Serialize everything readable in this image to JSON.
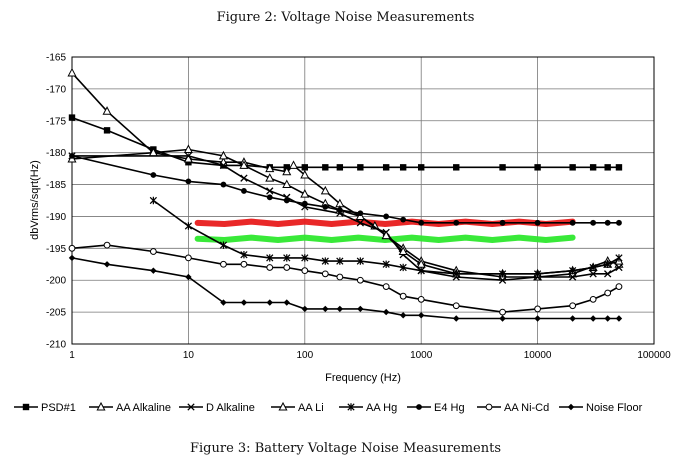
{
  "figure_title": "Figure 2: Voltage Noise Measurements",
  "figure_caption": "Figure 3: Battery Voltage Noise Measurements",
  "chart_data": {
    "type": "line",
    "xlabel": "Frequency (Hz)",
    "ylabel": "dbVrms/sqrt(Hz)",
    "xscale": "log",
    "xlim": [
      1,
      100000
    ],
    "ylim": [
      -210,
      -165
    ],
    "x_ticks": [
      "1",
      "10",
      "100",
      "1000",
      "10000",
      "100000"
    ],
    "y_ticks": [
      "-165",
      "-170",
      "-175",
      "-180",
      "-185",
      "-190",
      "-195",
      "-200",
      "-205",
      "-210"
    ],
    "grid": true,
    "legend_position": "bottom",
    "series": [
      {
        "name": "PSD#1",
        "marker": "square-filled",
        "points": [
          [
            1,
            -174.5
          ],
          [
            2,
            -176.5
          ],
          [
            5,
            -179.5
          ],
          [
            10,
            -181.5
          ],
          [
            20,
            -182
          ],
          [
            30,
            -182
          ],
          [
            50,
            -182.3
          ],
          [
            70,
            -182.3
          ],
          [
            100,
            -182.3
          ],
          [
            150,
            -182.3
          ],
          [
            200,
            -182.3
          ],
          [
            300,
            -182.3
          ],
          [
            500,
            -182.3
          ],
          [
            700,
            -182.3
          ],
          [
            1000,
            -182.3
          ],
          [
            2000,
            -182.3
          ],
          [
            5000,
            -182.3
          ],
          [
            10000,
            -182.3
          ],
          [
            20000,
            -182.3
          ],
          [
            30000,
            -182.3
          ],
          [
            40000,
            -182.3
          ],
          [
            50000,
            -182.3
          ]
        ]
      },
      {
        "name": "AA Alkaline",
        "marker": "triangle-open",
        "points": [
          [
            1,
            -167.5
          ],
          [
            2,
            -173.5
          ],
          [
            5,
            -180
          ],
          [
            10,
            -181
          ],
          [
            20,
            -181.5
          ],
          [
            30,
            -181.5
          ],
          [
            50,
            -182.5
          ],
          [
            70,
            -183
          ],
          [
            80,
            -182
          ],
          [
            100,
            -183.5
          ],
          [
            150,
            -186
          ],
          [
            200,
            -188
          ],
          [
            300,
            -190
          ],
          [
            400,
            -191.5
          ],
          [
            500,
            -193
          ],
          [
            700,
            -195
          ],
          [
            1000,
            -197
          ],
          [
            2000,
            -198.5
          ],
          [
            5000,
            -199.5
          ],
          [
            10000,
            -199.5
          ],
          [
            20000,
            -199
          ],
          [
            40000,
            -197
          ],
          [
            50000,
            -197.5
          ]
        ]
      },
      {
        "name": "D Alkaline",
        "marker": "x",
        "points": [
          [
            1,
            -180.5
          ],
          [
            10,
            -180.5
          ],
          [
            20,
            -182
          ],
          [
            30,
            -184
          ],
          [
            50,
            -186
          ],
          [
            70,
            -187
          ],
          [
            100,
            -188.5
          ],
          [
            200,
            -189.5
          ],
          [
            300,
            -191
          ],
          [
            500,
            -192.5
          ],
          [
            700,
            -196
          ],
          [
            1000,
            -198.5
          ],
          [
            2000,
            -199.5
          ],
          [
            5000,
            -200
          ],
          [
            10000,
            -199.5
          ],
          [
            20000,
            -199.5
          ],
          [
            30000,
            -199
          ],
          [
            40000,
            -199
          ],
          [
            50000,
            -198
          ]
        ]
      },
      {
        "name": "AA Li",
        "marker": "triangle-open",
        "points": [
          [
            1,
            -181
          ],
          [
            5,
            -180
          ],
          [
            10,
            -179.5
          ],
          [
            20,
            -180.5
          ],
          [
            30,
            -182
          ],
          [
            50,
            -184
          ],
          [
            70,
            -185
          ],
          [
            100,
            -186.5
          ],
          [
            150,
            -188
          ],
          [
            200,
            -189
          ],
          [
            300,
            -190
          ],
          [
            500,
            -193
          ],
          [
            700,
            -195.5
          ],
          [
            1000,
            -197.5
          ],
          [
            2000,
            -199
          ],
          [
            5000,
            -199
          ],
          [
            10000,
            -199
          ],
          [
            20000,
            -198.5
          ],
          [
            30000,
            -198
          ],
          [
            40000,
            -197.5
          ],
          [
            50000,
            -197
          ]
        ]
      },
      {
        "name": "AA Hg",
        "marker": "asterisk",
        "points": [
          [
            5,
            -187.5
          ],
          [
            10,
            -191.5
          ],
          [
            20,
            -194.5
          ],
          [
            30,
            -196
          ],
          [
            50,
            -196.5
          ],
          [
            70,
            -196.5
          ],
          [
            100,
            -196.5
          ],
          [
            150,
            -197
          ],
          [
            200,
            -197
          ],
          [
            300,
            -197
          ],
          [
            500,
            -197.5
          ],
          [
            700,
            -198
          ],
          [
            1000,
            -198.5
          ],
          [
            2000,
            -199
          ],
          [
            5000,
            -199
          ],
          [
            10000,
            -199
          ],
          [
            20000,
            -198.5
          ],
          [
            30000,
            -198
          ],
          [
            40000,
            -197.5
          ],
          [
            50000,
            -196.5
          ]
        ]
      },
      {
        "name": "E4 Hg",
        "marker": "circle-filled",
        "points": [
          [
            1,
            -180.5
          ],
          [
            5,
            -183.5
          ],
          [
            10,
            -184.5
          ],
          [
            20,
            -185
          ],
          [
            30,
            -186
          ],
          [
            50,
            -187
          ],
          [
            70,
            -187.5
          ],
          [
            100,
            -188
          ],
          [
            150,
            -188.5
          ],
          [
            200,
            -189
          ],
          [
            300,
            -189.5
          ],
          [
            500,
            -190
          ],
          [
            700,
            -190.5
          ],
          [
            1000,
            -191
          ],
          [
            2000,
            -191
          ],
          [
            5000,
            -191
          ],
          [
            10000,
            -191
          ],
          [
            20000,
            -191
          ],
          [
            30000,
            -191
          ],
          [
            40000,
            -191
          ],
          [
            50000,
            -191
          ]
        ]
      },
      {
        "name": "AA Ni-Cd",
        "marker": "circle-open",
        "points": [
          [
            1,
            -195
          ],
          [
            2,
            -194.5
          ],
          [
            5,
            -195.5
          ],
          [
            10,
            -196.5
          ],
          [
            20,
            -197.5
          ],
          [
            30,
            -197.5
          ],
          [
            50,
            -198
          ],
          [
            70,
            -198
          ],
          [
            100,
            -198.5
          ],
          [
            150,
            -199
          ],
          [
            200,
            -199.5
          ],
          [
            300,
            -200
          ],
          [
            500,
            -201
          ],
          [
            700,
            -202.5
          ],
          [
            1000,
            -203
          ],
          [
            2000,
            -204
          ],
          [
            5000,
            -205
          ],
          [
            10000,
            -204.5
          ],
          [
            20000,
            -204
          ],
          [
            30000,
            -203
          ],
          [
            40000,
            -202
          ],
          [
            50000,
            -201
          ]
        ]
      },
      {
        "name": "Noise Floor",
        "marker": "diamond-filled",
        "points": [
          [
            1,
            -196.5
          ],
          [
            2,
            -197.5
          ],
          [
            5,
            -198.5
          ],
          [
            10,
            -199.5
          ],
          [
            20,
            -203.5
          ],
          [
            30,
            -203.5
          ],
          [
            50,
            -203.5
          ],
          [
            70,
            -203.5
          ],
          [
            100,
            -204.5
          ],
          [
            150,
            -204.5
          ],
          [
            200,
            -204.5
          ],
          [
            300,
            -204.5
          ],
          [
            500,
            -205
          ],
          [
            700,
            -205.5
          ],
          [
            1000,
            -205.5
          ],
          [
            2000,
            -206
          ],
          [
            5000,
            -206
          ],
          [
            10000,
            -206
          ],
          [
            20000,
            -206
          ],
          [
            30000,
            -206
          ],
          [
            40000,
            -206
          ],
          [
            50000,
            -206
          ]
        ]
      }
    ],
    "annotations": [
      {
        "type": "highlight-band",
        "color": "#e81c1c",
        "x_from": 12,
        "x_to": 20000,
        "y": -191
      },
      {
        "type": "highlight-band",
        "color": "#2ee82e",
        "x_from": 12,
        "x_to": 20000,
        "y": -193.5
      }
    ]
  }
}
